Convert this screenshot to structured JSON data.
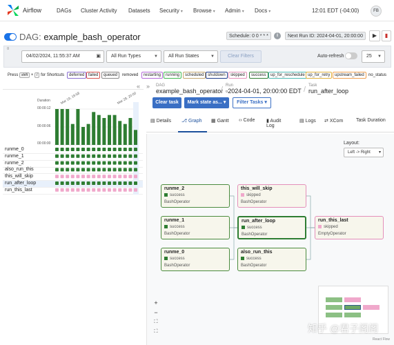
{
  "nav": {
    "brand": "Airflow",
    "items": [
      "DAGs",
      "Cluster Activity",
      "Datasets",
      "Security",
      "Browse",
      "Admin",
      "Docs"
    ],
    "clock": "12:01 EDT (-04:00)",
    "avatar": "FB"
  },
  "header": {
    "dag_label": "DAG:",
    "dag_name": "example_bash_operator",
    "schedule": "Schedule: 0 0 * * *",
    "next_run": "Next Run ID: 2024-04-01, 20:00:00"
  },
  "filters": {
    "date": "04/02/2024, 11:55:37 AM",
    "run_types": "All Run Types",
    "run_states": "All Run States",
    "clear_label": "Clear Filters",
    "auto_refresh": "Auto-refresh",
    "page_size": "25"
  },
  "legend": {
    "press": "Press",
    "shortcut_key_1": "shift",
    "shortcut_key_2": "/",
    "for_shortcuts": "for Shortcuts",
    "states": [
      {
        "label": "deferred",
        "color": "#8a6fd1"
      },
      {
        "label": "failed",
        "color": "#d9534f"
      },
      {
        "label": "queued",
        "color": "#888888"
      },
      {
        "label": "removed",
        "color": "#aaaaaa"
      },
      {
        "label": "restarting",
        "color": "#b36ad9"
      },
      {
        "label": "running",
        "color": "#3fb950"
      },
      {
        "label": "scheduled",
        "color": "#c4a66d"
      },
      {
        "label": "shutdown",
        "color": "#1e3a8a"
      },
      {
        "label": "skipped",
        "color": "#e48fb9"
      },
      {
        "label": "success",
        "color": "#2e7d32"
      },
      {
        "label": "up_for_reschedule",
        "color": "#4dbab4"
      },
      {
        "label": "up_for_retry",
        "color": "#e0b13b"
      },
      {
        "label": "upstream_failed",
        "color": "#f0a050"
      },
      {
        "label": "no_status",
        "color": "#ffffff"
      }
    ]
  },
  "grid": {
    "duration_label": "Duration",
    "axis_ticks": [
      "00:00:12",
      "00:00:06",
      "00:00:00"
    ],
    "date_ticks": [
      "Mar 19, 19:58",
      "Mar 28, 20:00"
    ],
    "durations": [
      12,
      12,
      12,
      7,
      12,
      6,
      7,
      11,
      10,
      9,
      10,
      10,
      8,
      7,
      9,
      5
    ],
    "tasks": [
      {
        "name": "runme_0",
        "pattern": "green"
      },
      {
        "name": "runme_1",
        "pattern": "green"
      },
      {
        "name": "runme_2",
        "pattern": "green"
      },
      {
        "name": "also_run_this",
        "pattern": "green"
      },
      {
        "name": "this_will_skip",
        "pattern": "pink"
      },
      {
        "name": "run_after_loop",
        "pattern": "green"
      },
      {
        "name": "run_this_last",
        "pattern": "pink"
      }
    ]
  },
  "detail": {
    "dag_label": "DAG",
    "dag_value": "example_bash_operator",
    "run_label": "Run",
    "run_value": "2024-04-01, 20:00:00 EDT",
    "task_label": "Task",
    "task_value": "run_after_loop",
    "clear_task": "Clear task",
    "mark_state": "Mark state as...",
    "filter_tasks": "Filter Tasks"
  },
  "tabs": [
    {
      "label": "Details",
      "icon": "details-icon"
    },
    {
      "label": "Graph",
      "icon": "graph-icon"
    },
    {
      "label": "Gantt",
      "icon": "gantt-icon"
    },
    {
      "label": "Code",
      "icon": "code-icon"
    },
    {
      "label": "Audit Log",
      "icon": "audit-log-icon"
    },
    {
      "label": "Logs",
      "icon": "logs-icon"
    },
    {
      "label": "XCom",
      "icon": "xcom-icon"
    },
    {
      "label": "Task Duration",
      "icon": ""
    }
  ],
  "graph": {
    "layout_label": "Layout:",
    "layout_value": "Left -> Right",
    "nodes": [
      {
        "name": "runme_2",
        "state": "success",
        "operator": "BashOperator"
      },
      {
        "name": "this_will_skip",
        "state": "skipped",
        "operator": "BashOperator"
      },
      {
        "name": "runme_1",
        "state": "success",
        "operator": "BashOperator"
      },
      {
        "name": "run_after_loop",
        "state": "success",
        "operator": "BashOperator"
      },
      {
        "name": "run_this_last",
        "state": "skipped",
        "operator": "EmptyOperator"
      },
      {
        "name": "runme_0",
        "state": "success",
        "operator": "BashOperator"
      },
      {
        "name": "also_run_this",
        "state": "success",
        "operator": "BashOperator"
      }
    ],
    "zoom_in": "+",
    "zoom_out": "−",
    "fit": "⛶",
    "lock": "⛶",
    "attribution": "React Flow"
  },
  "watermark": "知乎 @君子阁阁"
}
